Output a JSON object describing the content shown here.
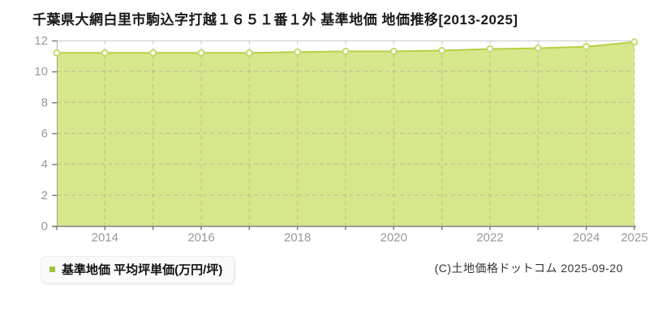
{
  "header": {
    "title": "千葉県大網白里市駒込字打越１６５１番１外 基準地価 地価推移[2013-2025]"
  },
  "legend": {
    "marker_color": "#9ec73c",
    "label": "基準地価 平均坪単価(万円/坪)"
  },
  "footer": {
    "copyright": "(C)土地価格ドットコム 2025-09-20"
  },
  "chart_data": {
    "type": "area",
    "title": "千葉県大網白里市駒込字打越１６５１番１外 基準地価 地価推移[2013-2025]",
    "series_name": "基準地価 平均坪単価(万円/坪)",
    "x": [
      2013,
      2014,
      2015,
      2016,
      2017,
      2018,
      2019,
      2020,
      2021,
      2022,
      2023,
      2024,
      2025
    ],
    "values": [
      11.2,
      11.2,
      11.2,
      11.2,
      11.2,
      11.25,
      11.3,
      11.3,
      11.35,
      11.45,
      11.5,
      11.6,
      11.9
    ],
    "ylabel": "",
    "xlabel": "",
    "ylim": [
      0,
      12
    ],
    "yticks": [
      0,
      2,
      4,
      6,
      8,
      10,
      12
    ],
    "xtick_years": [
      2014,
      2016,
      2018,
      2020,
      2022,
      2024,
      2025
    ],
    "xtick_labels": [
      "2014",
      "2016",
      "2018",
      "2020",
      "2022",
      "2024",
      "2025"
    ],
    "grid": "dashed",
    "legend_position": "bottom-left",
    "colors": {
      "fill": "#d7e78c",
      "line": "#b4d144",
      "point_fill": "#ffffff",
      "point_stroke": "#c4db6b",
      "grid": "#999999",
      "axis": "#808080",
      "tick_label": "#999999",
      "top_border": "#cccccc"
    }
  }
}
